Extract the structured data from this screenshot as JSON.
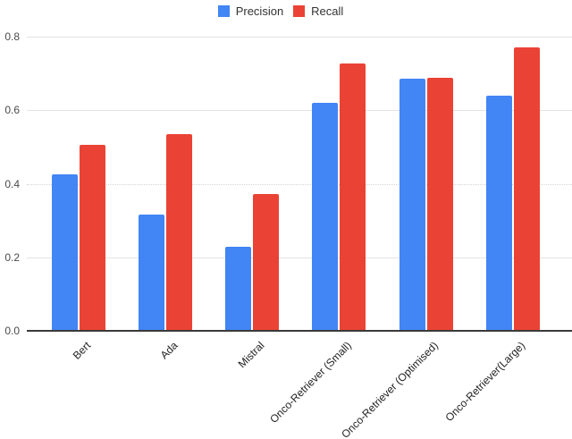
{
  "legend": {
    "items": [
      {
        "label": "Precision",
        "color": "#4285F4"
      },
      {
        "label": "Recall",
        "color": "#EA4335"
      }
    ]
  },
  "chart_data": {
    "type": "bar",
    "title": "",
    "xlabel": "",
    "ylabel": "",
    "categories": [
      "Bert",
      "Ada",
      "Mistral",
      "Onco-Retriever (Small)",
      "Onco-Retriever (Optimised)",
      "Onco-Retriever(Large)"
    ],
    "series": [
      {
        "name": "Precision",
        "color": "#4285F4",
        "values": [
          0.425,
          0.315,
          0.228,
          0.62,
          0.685,
          0.64
        ]
      },
      {
        "name": "Recall",
        "color": "#EA4335",
        "values": [
          0.505,
          0.535,
          0.372,
          0.727,
          0.688,
          0.77
        ]
      }
    ],
    "ylim": [
      0,
      0.8
    ],
    "yticks": [
      0,
      0.2,
      0.4,
      0.6,
      0.8
    ],
    "ytick_labels": [
      "0.0",
      "0.2",
      "0.4",
      "0.6",
      "0.8"
    ],
    "grid": true,
    "dotted_gridline_at": 0.4,
    "legend_position": "top",
    "baseline_color": "#3a3a3a",
    "gridline_color": "#e3e3e3"
  }
}
